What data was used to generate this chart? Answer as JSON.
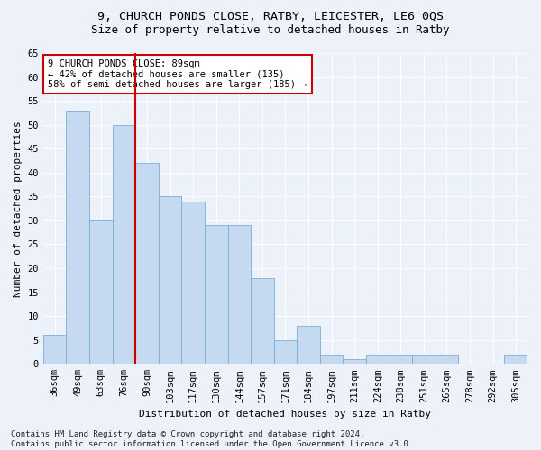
{
  "title1": "9, CHURCH PONDS CLOSE, RATBY, LEICESTER, LE6 0QS",
  "title2": "Size of property relative to detached houses in Ratby",
  "xlabel": "Distribution of detached houses by size in Ratby",
  "ylabel": "Number of detached properties",
  "categories": [
    "36sqm",
    "49sqm",
    "63sqm",
    "76sqm",
    "90sqm",
    "103sqm",
    "117sqm",
    "130sqm",
    "144sqm",
    "157sqm",
    "171sqm",
    "184sqm",
    "197sqm",
    "211sqm",
    "224sqm",
    "238sqm",
    "251sqm",
    "265sqm",
    "278sqm",
    "292sqm",
    "305sqm"
  ],
  "values": [
    6,
    53,
    30,
    50,
    42,
    35,
    34,
    29,
    29,
    18,
    5,
    8,
    2,
    1,
    2,
    2,
    2,
    2,
    0,
    0,
    2
  ],
  "bar_color": "#c5d9f0",
  "bar_edge_color": "#7badd4",
  "vline_index": 4,
  "vline_color": "#cc0000",
  "annotation_text": "9 CHURCH PONDS CLOSE: 89sqm\n← 42% of detached houses are smaller (135)\n58% of semi-detached houses are larger (185) →",
  "annotation_box_facecolor": "#ffffff",
  "annotation_box_edgecolor": "#cc0000",
  "footnote": "Contains HM Land Registry data © Crown copyright and database right 2024.\nContains public sector information licensed under the Open Government Licence v3.0.",
  "ylim": [
    0,
    65
  ],
  "background_color": "#edf2fa",
  "grid_color": "#ffffff",
  "title1_fontsize": 9.5,
  "title2_fontsize": 9,
  "ylabel_fontsize": 8,
  "xlabel_fontsize": 8,
  "tick_fontsize": 7.5,
  "annotation_fontsize": 7.5,
  "footnote_fontsize": 6.5
}
